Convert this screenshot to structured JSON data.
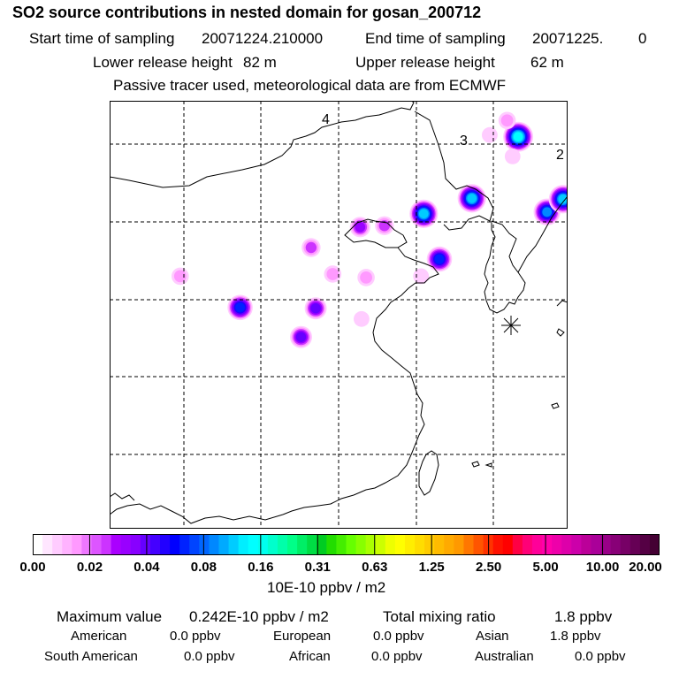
{
  "header": {
    "title": "SO2 source contributions in nested domain for gosan_200712",
    "start_label": "Start time of sampling",
    "start_value": "20071224.210000",
    "end_label": "End time of sampling",
    "end_value": "20071225.",
    "end_hour": "0",
    "lower_label": "Lower release height",
    "lower_value": "82 m",
    "upper_label": "Upper release height",
    "upper_value": "62 m",
    "note": "Passive tracer used, meteorological data are from ECMWF"
  },
  "map": {
    "region_labels": [
      "4",
      "3",
      "2"
    ],
    "receptor_marker": "asterisk-icon",
    "colors": {
      "grid": "#000000",
      "coast": "#000000"
    },
    "plumes": [
      {
        "lon": 0.154,
        "lat": 0.41,
        "level": 2
      },
      {
        "lon": 0.285,
        "lat": 0.483,
        "level": 7
      },
      {
        "lon": 0.44,
        "lat": 0.343,
        "level": 3
      },
      {
        "lon": 0.547,
        "lat": 0.295,
        "level": 4
      },
      {
        "lon": 0.6,
        "lat": 0.292,
        "level": 3
      },
      {
        "lon": 0.487,
        "lat": 0.405,
        "level": 2
      },
      {
        "lon": 0.56,
        "lat": 0.413,
        "level": 2
      },
      {
        "lon": 0.45,
        "lat": 0.485,
        "level": 5
      },
      {
        "lon": 0.418,
        "lat": 0.552,
        "level": 5
      },
      {
        "lon": 0.55,
        "lat": 0.51,
        "level": 1
      },
      {
        "lon": 0.686,
        "lat": 0.264,
        "level": 9
      },
      {
        "lon": 0.72,
        "lat": 0.37,
        "level": 7
      },
      {
        "lon": 0.791,
        "lat": 0.228,
        "level": 9
      },
      {
        "lon": 0.892,
        "lat": 0.084,
        "level": 10
      },
      {
        "lon": 0.868,
        "lat": 0.046,
        "level": 2
      },
      {
        "lon": 0.83,
        "lat": 0.08,
        "level": 1
      },
      {
        "lon": 0.955,
        "lat": 0.26,
        "level": 8
      },
      {
        "lon": 0.99,
        "lat": 0.23,
        "level": 9
      },
      {
        "lon": 0.88,
        "lat": 0.13,
        "level": 1
      },
      {
        "lon": 0.68,
        "lat": 0.41,
        "level": 1
      }
    ]
  },
  "colorbar": {
    "colors": [
      "#ffffff",
      "#ffe6ff",
      "#ffccff",
      "#ffb3ff",
      "#ff99ff",
      "#ee77ff",
      "#dd55ff",
      "#cc33ff",
      "#aa00ff",
      "#9900ff",
      "#8800ff",
      "#6600ff",
      "#4400ff",
      "#2200ff",
      "#0000ff",
      "#0022ff",
      "#0044ff",
      "#0066ff",
      "#0088ff",
      "#00aaff",
      "#00ccff",
      "#00eeff",
      "#00ffff",
      "#00ffee",
      "#00ffcc",
      "#00ffaa",
      "#00ff88",
      "#00ee66",
      "#00dd44",
      "#00cc22",
      "#22dd00",
      "#44ee00",
      "#66ff00",
      "#88ff00",
      "#aaff00",
      "#ccff00",
      "#eeff00",
      "#ffff00",
      "#ffee00",
      "#ffdd00",
      "#ffcc00",
      "#ffbb00",
      "#ffaa00",
      "#ff9900",
      "#ff7700",
      "#ff5500",
      "#ff3300",
      "#ff1100",
      "#ff0000",
      "#ff0044",
      "#ff0077",
      "#ff0099",
      "#ff00aa",
      "#ee00aa",
      "#dd00aa",
      "#cc00aa",
      "#bb0099",
      "#aa0099",
      "#990088",
      "#880077",
      "#770066",
      "#660055",
      "#550044",
      "#440033"
    ],
    "ticks": [
      "0.00",
      "0.02",
      "0.04",
      "0.08",
      "0.16",
      "0.31",
      "0.63",
      "1.25",
      "2.50",
      "5.00",
      "10.00",
      "20.00"
    ],
    "units": "10E-10 ppbv / m2"
  },
  "stats": {
    "max_label": "Maximum value",
    "max_value": "0.242E-10 ppbv / m2",
    "total_label": "Total mixing ratio",
    "total_value": "1.8 ppbv",
    "regions": [
      {
        "name": "American",
        "value": "0.0 ppbv"
      },
      {
        "name": "European",
        "value": "0.0 ppbv"
      },
      {
        "name": "Asian",
        "value": "1.8 ppbv"
      },
      {
        "name": "South American",
        "value": "0.0 ppbv"
      },
      {
        "name": "African",
        "value": "0.0 ppbv"
      },
      {
        "name": "Australian",
        "value": "0.0 ppbv"
      }
    ]
  }
}
